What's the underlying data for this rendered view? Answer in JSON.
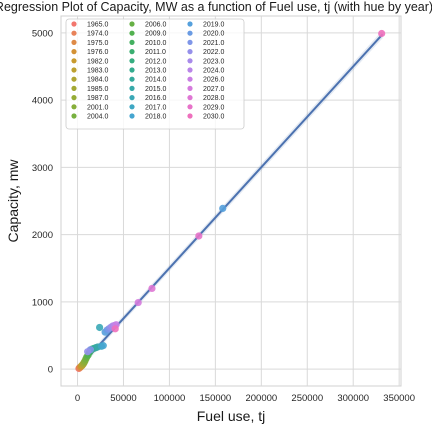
{
  "chart_data": {
    "type": "scatter",
    "title": "Regression Plot of Capacity, MW as a function of Fuel use, tj (with hue by year)",
    "xlabel": "Fuel use, tj",
    "ylabel": "Capacity, mw",
    "xlim": [
      -18000,
      352000
    ],
    "ylim": [
      -250,
      5250
    ],
    "xticks": [
      0,
      50000,
      100000,
      150000,
      200000,
      250000,
      300000,
      350000
    ],
    "yticks": [
      0,
      1000,
      2000,
      3000,
      4000,
      5000
    ],
    "grid": true,
    "legend_position": "top-left",
    "regression": {
      "x_start": 0,
      "y_start": 5,
      "x_end": 332000,
      "y_end": 4980,
      "color": "#4c72b0"
    },
    "series": [
      {
        "name": "1965.0",
        "color": "#f2766d",
        "points": [
          [
            1500,
            10
          ]
        ]
      },
      {
        "name": "1974.0",
        "color": "#e8825a",
        "points": [
          [
            2200,
            20
          ]
        ]
      },
      {
        "name": "1975.0",
        "color": "#de8a47",
        "points": [
          [
            3000,
            30
          ]
        ]
      },
      {
        "name": "1976.0",
        "color": "#d39135",
        "points": [
          [
            3800,
            40
          ]
        ]
      },
      {
        "name": "1982.0",
        "color": "#c89a2e",
        "points": [
          [
            4500,
            50
          ]
        ]
      },
      {
        "name": "1983.0",
        "color": "#bda030",
        "points": [
          [
            5200,
            60
          ]
        ]
      },
      {
        "name": "1984.0",
        "color": "#b0a532",
        "points": [
          [
            5800,
            70
          ]
        ]
      },
      {
        "name": "1985.0",
        "color": "#a3a833",
        "points": [
          [
            6400,
            80
          ]
        ]
      },
      {
        "name": "1987.0",
        "color": "#95ac35",
        "points": [
          [
            7200,
            100
          ]
        ]
      },
      {
        "name": "2001.0",
        "color": "#86ae3a",
        "points": [
          [
            8000,
            120
          ]
        ]
      },
      {
        "name": "2004.0",
        "color": "#77b03f",
        "points": [
          [
            9000,
            150
          ]
        ]
      },
      {
        "name": "2006.0",
        "color": "#66b045",
        "points": [
          [
            10000,
            180
          ]
        ]
      },
      {
        "name": "2009.0",
        "color": "#52b150",
        "points": [
          [
            11500,
            210
          ]
        ]
      },
      {
        "name": "2010.0",
        "color": "#44b060",
        "points": [
          [
            13000,
            250
          ]
        ]
      },
      {
        "name": "2011.0",
        "color": "#3aae70",
        "points": [
          [
            14500,
            280
          ]
        ]
      },
      {
        "name": "2012.0",
        "color": "#36ad80",
        "points": [
          [
            16000,
            300
          ]
        ]
      },
      {
        "name": "2013.0",
        "color": "#34ab8e",
        "points": [
          [
            18000,
            310
          ]
        ]
      },
      {
        "name": "2014.0",
        "color": "#35aa9c",
        "points": [
          [
            20000,
            320
          ]
        ]
      },
      {
        "name": "2015.0",
        "color": "#37a9a9",
        "points": [
          [
            22000,
            330
          ]
        ]
      },
      {
        "name": "2016.0",
        "color": "#3aa8b6",
        "points": [
          [
            24000,
            620
          ]
        ]
      },
      {
        "name": "2017.0",
        "color": "#3ea7c3",
        "points": [
          [
            26000,
            340
          ]
        ]
      },
      {
        "name": "2018.0",
        "color": "#45a5d0",
        "points": [
          [
            28000,
            350
          ]
        ]
      },
      {
        "name": "2019.0",
        "color": "#55a0dc",
        "points": [
          [
            30000,
            550
          ]
        ]
      },
      {
        "name": "2020.0",
        "color": "#6a9be3",
        "points": [
          [
            32000,
            580
          ]
        ]
      },
      {
        "name": "2021.0",
        "color": "#7f96e8",
        "points": [
          [
            34000,
            600
          ]
        ]
      },
      {
        "name": "2022.0",
        "color": "#9590ea",
        "points": [
          [
            36000,
            620
          ]
        ]
      },
      {
        "name": "2023.0",
        "color": "#a88aea",
        "points": [
          [
            38000,
            640
          ]
        ]
      },
      {
        "name": "2024.0",
        "color": "#b985e8",
        "points": [
          [
            40000,
            650
          ]
        ]
      },
      {
        "name": "2026.0",
        "color": "#c97fe4",
        "points": [
          [
            42000,
            660
          ]
        ]
      },
      {
        "name": "2027.0",
        "color": "#d57bdd",
        "points": [
          [
            66000,
            990
          ]
        ]
      },
      {
        "name": "2028.0",
        "color": "#df77d4",
        "points": [
          [
            81000,
            1200
          ]
        ]
      },
      {
        "name": "2029.0",
        "color": "#e773c9",
        "points": [
          [
            132000,
            1980
          ]
        ]
      },
      {
        "name": "2030.0",
        "color": "#ee70bd",
        "points": [
          [
            331000,
            4990
          ]
        ]
      }
    ],
    "extra_points": [
      {
        "x": 158000,
        "y": 2390,
        "color": "#55a0dc"
      },
      {
        "x": 14000,
        "y": 290,
        "color": "#7f96e8"
      },
      {
        "x": 11000,
        "y": 260,
        "color": "#9590ea"
      },
      {
        "x": 41000,
        "y": 600,
        "color": "#ee70bd"
      }
    ]
  }
}
